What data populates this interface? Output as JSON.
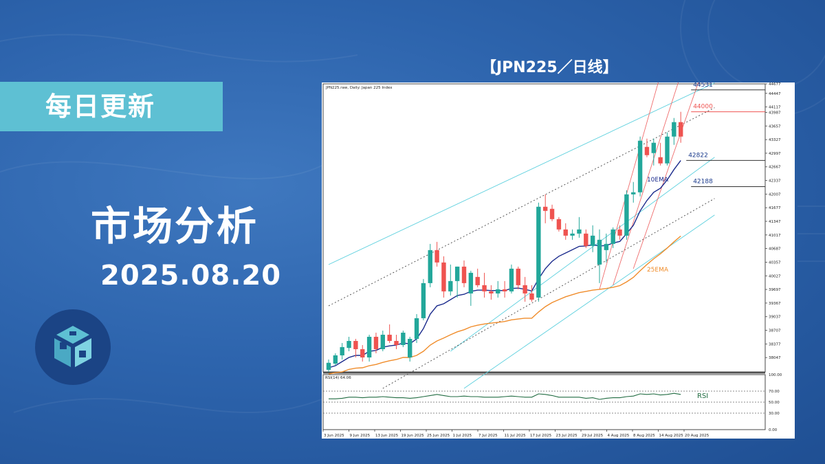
{
  "badge": "每日更新",
  "headline": "市场分析",
  "date": "2025.08.20",
  "chart_caption": "【JPN225／日线】",
  "colors": {
    "accent": "#5ec0d3",
    "up": "#22a79a",
    "down": "#ef5350",
    "ema10": "#1a2a8c",
    "ema25": "#f08c2a",
    "channel": "#5cd0de"
  },
  "chart_data": {
    "type": "candlestick",
    "title": "JPN225.raw, Daily: Japan 225 Index",
    "ylim": [
      37700,
      44677
    ],
    "y_ticks": [
      "44677",
      "44447",
      "44117",
      "43987",
      "43657",
      "43327",
      "42997",
      "42667",
      "42337",
      "42007",
      "41677",
      "41347",
      "41017",
      "40687",
      "40357",
      "40027",
      "39697",
      "39367",
      "39037",
      "38707",
      "38377",
      "38047"
    ],
    "x_ticks": [
      "3 Jun 2025",
      "9 Jun 2025",
      "13 Jun 2025",
      "19 Jun 2025",
      "25 Jun 2025",
      "1 Jul 2025",
      "7 Jul 2025",
      "11 Jul 2025",
      "17 Jul 2025",
      "23 Jul 2025",
      "29 Jul 2025",
      "4 Aug 2025",
      "8 Aug 2025",
      "14 Aug 2025",
      "20 Aug 2025"
    ],
    "candles": [
      {
        "o": 37750,
        "h": 38000,
        "l": 37700,
        "c": 37920
      },
      {
        "o": 37900,
        "h": 38150,
        "l": 37850,
        "c": 38100
      },
      {
        "o": 38100,
        "h": 38400,
        "l": 38000,
        "c": 38300
      },
      {
        "o": 38280,
        "h": 38550,
        "l": 38200,
        "c": 38450
      },
      {
        "o": 38450,
        "h": 38500,
        "l": 38050,
        "c": 38250
      },
      {
        "o": 38250,
        "h": 38350,
        "l": 37950,
        "c": 38050
      },
      {
        "o": 38050,
        "h": 38600,
        "l": 37950,
        "c": 38550
      },
      {
        "o": 38550,
        "h": 38650,
        "l": 38150,
        "c": 38250
      },
      {
        "o": 38250,
        "h": 38700,
        "l": 38200,
        "c": 38600
      },
      {
        "o": 38600,
        "h": 38850,
        "l": 38400,
        "c": 38450
      },
      {
        "o": 38450,
        "h": 38600,
        "l": 38250,
        "c": 38350
      },
      {
        "o": 38350,
        "h": 38700,
        "l": 38300,
        "c": 38650
      },
      {
        "o": 38050,
        "h": 38550,
        "l": 37950,
        "c": 38500
      },
      {
        "o": 38500,
        "h": 39100,
        "l": 38400,
        "c": 39000
      },
      {
        "o": 39000,
        "h": 39950,
        "l": 38950,
        "c": 39850
      },
      {
        "o": 39850,
        "h": 40800,
        "l": 39750,
        "c": 40650
      },
      {
        "o": 40650,
        "h": 40850,
        "l": 40250,
        "c": 40350
      },
      {
        "o": 40350,
        "h": 40500,
        "l": 39500,
        "c": 39650
      },
      {
        "o": 39650,
        "h": 40300,
        "l": 39550,
        "c": 39900
      },
      {
        "o": 39900,
        "h": 40250,
        "l": 39500,
        "c": 40250
      },
      {
        "o": 40250,
        "h": 40400,
        "l": 39750,
        "c": 39850
      },
      {
        "o": 39600,
        "h": 40150,
        "l": 39300,
        "c": 40100
      },
      {
        "o": 40000,
        "h": 40200,
        "l": 39750,
        "c": 39800
      },
      {
        "o": 39800,
        "h": 40100,
        "l": 39500,
        "c": 39650
      },
      {
        "o": 39650,
        "h": 39800,
        "l": 39450,
        "c": 39600
      },
      {
        "o": 39600,
        "h": 39900,
        "l": 39500,
        "c": 39700
      },
      {
        "o": 39700,
        "h": 39900,
        "l": 39500,
        "c": 39650
      },
      {
        "o": 39650,
        "h": 40300,
        "l": 39600,
        "c": 40200
      },
      {
        "o": 40200,
        "h": 40250,
        "l": 39700,
        "c": 39800
      },
      {
        "o": 39800,
        "h": 40000,
        "l": 39400,
        "c": 39600
      },
      {
        "o": 39600,
        "h": 39800,
        "l": 39400,
        "c": 39450
      },
      {
        "o": 39500,
        "h": 41800,
        "l": 39400,
        "c": 41700
      },
      {
        "o": 41700,
        "h": 42000,
        "l": 41300,
        "c": 41600
      },
      {
        "o": 41650,
        "h": 41750,
        "l": 41350,
        "c": 41400
      },
      {
        "o": 41400,
        "h": 41450,
        "l": 41100,
        "c": 41150
      },
      {
        "o": 41150,
        "h": 41300,
        "l": 40900,
        "c": 41000
      },
      {
        "o": 41000,
        "h": 41150,
        "l": 40900,
        "c": 41050
      },
      {
        "o": 41050,
        "h": 41450,
        "l": 40950,
        "c": 41150
      },
      {
        "o": 41050,
        "h": 41150,
        "l": 40700,
        "c": 40750
      },
      {
        "o": 40750,
        "h": 41250,
        "l": 40600,
        "c": 41000
      },
      {
        "o": 40300,
        "h": 41150,
        "l": 39850,
        "c": 40900
      },
      {
        "o": 40650,
        "h": 41050,
        "l": 40350,
        "c": 40800
      },
      {
        "o": 40800,
        "h": 41200,
        "l": 40700,
        "c": 41150
      },
      {
        "o": 41150,
        "h": 41250,
        "l": 40900,
        "c": 41000
      },
      {
        "o": 41000,
        "h": 42100,
        "l": 40900,
        "c": 42000
      },
      {
        "o": 42000,
        "h": 42300,
        "l": 41800,
        "c": 42050
      },
      {
        "o": 42050,
        "h": 43400,
        "l": 41950,
        "c": 43300
      },
      {
        "o": 43150,
        "h": 43350,
        "l": 42900,
        "c": 42950
      },
      {
        "o": 43000,
        "h": 43350,
        "l": 42700,
        "c": 43250
      },
      {
        "o": 42900,
        "h": 43250,
        "l": 42700,
        "c": 42750
      },
      {
        "o": 42750,
        "h": 43500,
        "l": 42700,
        "c": 43400
      },
      {
        "o": 43400,
        "h": 43850,
        "l": 43200,
        "c": 43750
      },
      {
        "o": 43750,
        "h": 44000,
        "l": 43250,
        "c": 43400
      }
    ],
    "series": [
      {
        "name": "10EMA",
        "values": [
          37800,
          37850,
          37950,
          38050,
          38100,
          38100,
          38200,
          38220,
          38300,
          38330,
          38350,
          38400,
          38380,
          38500,
          38750,
          39100,
          39300,
          39350,
          39450,
          39550,
          39580,
          39650,
          39680,
          39680,
          39670,
          39670,
          39670,
          39720,
          39730,
          39700,
          39660,
          39950,
          40200,
          40380,
          40500,
          40580,
          40660,
          40740,
          40750,
          40780,
          40750,
          40760,
          40820,
          40860,
          41050,
          41250,
          41600,
          41850,
          42050,
          42150,
          42350,
          42600,
          42822
        ]
      },
      {
        "name": "25EMA",
        "values": [
          37650,
          37680,
          37700,
          37760,
          37790,
          37800,
          37850,
          37880,
          37930,
          37970,
          38000,
          38050,
          38050,
          38100,
          38200,
          38350,
          38450,
          38520,
          38600,
          38670,
          38720,
          38790,
          38830,
          38860,
          38880,
          38900,
          38920,
          38960,
          38980,
          39000,
          39000,
          39150,
          39280,
          39380,
          39450,
          39520,
          39570,
          39620,
          39650,
          39680,
          39700,
          39720,
          39750,
          39790,
          39880,
          39990,
          40150,
          40300,
          40440,
          40560,
          40700,
          40850,
          40990
        ]
      }
    ],
    "levels": [
      {
        "label": "44531",
        "value": 44531
      },
      {
        "label": "44000",
        "value": 44000
      },
      {
        "label": "42822",
        "value": 42822
      },
      {
        "label": "42188",
        "value": 42188
      }
    ],
    "annotations": [
      "10EMA",
      "25EMA"
    ],
    "rsi": {
      "title": "RSI(14) 64.06",
      "label": "RSI",
      "ylim": [
        0,
        100
      ],
      "y_ticks": [
        "100.00",
        "70.00",
        "50.00",
        "30.00",
        "0.00"
      ],
      "values": [
        56,
        56,
        57,
        59,
        59,
        58,
        59,
        59,
        60,
        59,
        58,
        58,
        57,
        58,
        60,
        62,
        64,
        62,
        60,
        60,
        61,
        60,
        60,
        59,
        59,
        59,
        60,
        61,
        60,
        59,
        59,
        65,
        64,
        62,
        59,
        59,
        59,
        59,
        57,
        58,
        55,
        57,
        58,
        58,
        60,
        61,
        65,
        64,
        65,
        63,
        64,
        66,
        64
      ]
    }
  }
}
